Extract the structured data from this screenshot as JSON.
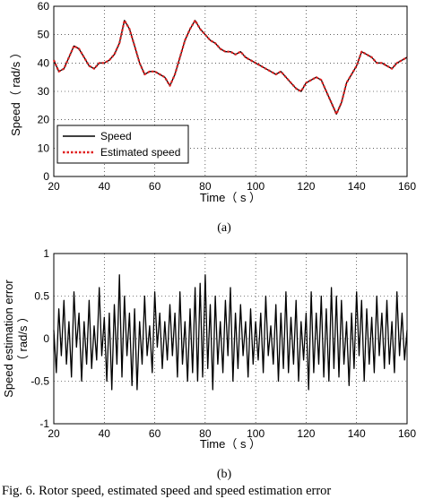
{
  "caption": "Fig. 6.  Rotor speed, estimated speed and speed estimation error",
  "chart_data": [
    {
      "type": "line",
      "sublabel": "(a)",
      "xlabel": "Time（ s ）",
      "ylabel": "Speed（ rad/s ）",
      "xlim": [
        20,
        160
      ],
      "ylim": [
        0,
        60
      ],
      "xticks": [
        20,
        40,
        60,
        80,
        100,
        120,
        140,
        160
      ],
      "yticks": [
        0,
        10,
        20,
        30,
        40,
        50,
        60
      ],
      "grid": true,
      "legend_position": "lower-left",
      "series": [
        {
          "name": "Speed",
          "color": "#000000",
          "style": "solid",
          "x": [
            20,
            22,
            24,
            26,
            28,
            30,
            32,
            34,
            36,
            38,
            40,
            42,
            44,
            46,
            48,
            50,
            52,
            54,
            56,
            58,
            60,
            62,
            64,
            66,
            68,
            70,
            72,
            74,
            76,
            78,
            80,
            82,
            84,
            86,
            88,
            90,
            92,
            94,
            96,
            98,
            100,
            102,
            104,
            106,
            108,
            110,
            112,
            114,
            116,
            118,
            120,
            122,
            124,
            126,
            128,
            130,
            132,
            134,
            136,
            138,
            140,
            142,
            144,
            146,
            148,
            150,
            152,
            154,
            156,
            158,
            160
          ],
          "values": [
            41,
            37,
            38,
            42,
            46,
            45,
            42,
            39,
            38,
            40,
            40,
            41,
            43,
            47,
            55,
            52,
            46,
            40,
            36,
            37,
            37,
            36,
            35,
            32,
            36,
            42,
            48,
            52,
            55,
            52,
            50,
            48,
            47,
            45,
            44,
            44,
            43,
            44,
            42,
            41,
            40,
            39,
            38,
            37,
            36,
            37,
            35,
            33,
            31,
            30,
            33,
            34,
            35,
            34,
            30,
            26,
            22,
            26,
            33,
            36,
            39,
            44,
            43,
            42,
            40,
            40,
            39,
            38,
            40,
            41,
            42
          ]
        },
        {
          "name": "Estimated speed",
          "color": "#e02020",
          "style": "dotted",
          "x": [
            20,
            22,
            24,
            26,
            28,
            30,
            32,
            34,
            36,
            38,
            40,
            42,
            44,
            46,
            48,
            50,
            52,
            54,
            56,
            58,
            60,
            62,
            64,
            66,
            68,
            70,
            72,
            74,
            76,
            78,
            80,
            82,
            84,
            86,
            88,
            90,
            92,
            94,
            96,
            98,
            100,
            102,
            104,
            106,
            108,
            110,
            112,
            114,
            116,
            118,
            120,
            122,
            124,
            126,
            128,
            130,
            132,
            134,
            136,
            138,
            140,
            142,
            144,
            146,
            148,
            150,
            152,
            154,
            156,
            158,
            160
          ],
          "values": [
            41,
            37,
            38,
            42,
            46,
            45,
            42,
            39,
            38,
            40,
            40,
            41,
            43,
            47,
            55,
            52,
            46,
            40,
            36,
            37,
            37,
            36,
            35,
            32,
            36,
            42,
            48,
            52,
            55,
            52,
            50,
            48,
            47,
            45,
            44,
            44,
            43,
            44,
            42,
            41,
            40,
            39,
            38,
            37,
            36,
            37,
            35,
            33,
            31,
            30,
            33,
            34,
            35,
            34,
            30,
            26,
            22,
            26,
            33,
            36,
            39,
            44,
            43,
            42,
            40,
            40,
            39,
            38,
            40,
            41,
            42
          ]
        }
      ]
    },
    {
      "type": "line",
      "sublabel": "(b)",
      "xlabel": "Time（ s ）",
      "ylabel": "Speed estimation error",
      "ylabel2": "（ rad/s ）",
      "xlim": [
        20,
        160
      ],
      "ylim": [
        -1,
        1
      ],
      "xticks": [
        20,
        40,
        60,
        80,
        100,
        120,
        140,
        160
      ],
      "yticks": [
        -1,
        -0.5,
        0,
        0.5,
        1
      ],
      "grid": true,
      "series": [
        {
          "color": "#000000",
          "style": "solid",
          "x": [
            20,
            21,
            22,
            23,
            24,
            25,
            26,
            27,
            28,
            29,
            30,
            31,
            32,
            33,
            34,
            35,
            36,
            37,
            38,
            39,
            40,
            41,
            42,
            43,
            44,
            45,
            46,
            47,
            48,
            49,
            50,
            51,
            52,
            53,
            54,
            55,
            56,
            57,
            58,
            59,
            60,
            61,
            62,
            63,
            64,
            65,
            66,
            67,
            68,
            69,
            70,
            71,
            72,
            73,
            74,
            75,
            76,
            77,
            78,
            79,
            80,
            81,
            82,
            83,
            84,
            85,
            86,
            87,
            88,
            89,
            90,
            91,
            92,
            93,
            94,
            95,
            96,
            97,
            98,
            99,
            100,
            101,
            102,
            103,
            104,
            105,
            106,
            107,
            108,
            109,
            110,
            111,
            112,
            113,
            114,
            115,
            116,
            117,
            118,
            119,
            120,
            121,
            122,
            123,
            124,
            125,
            126,
            127,
            128,
            129,
            130,
            131,
            132,
            133,
            134,
            135,
            136,
            137,
            138,
            139,
            140,
            141,
            142,
            143,
            144,
            145,
            146,
            147,
            148,
            149,
            150,
            151,
            152,
            153,
            154,
            155,
            156,
            157,
            158,
            159,
            160
          ],
          "values": [
            0.1,
            -0.4,
            0.35,
            -0.2,
            0.45,
            -0.3,
            0.2,
            -0.45,
            0.55,
            -0.1,
            0.3,
            -0.5,
            0.2,
            -0.3,
            0.45,
            -0.35,
            0.15,
            -0.25,
            0.6,
            -0.2,
            0.25,
            -0.5,
            0.3,
            -0.6,
            0.4,
            -0.3,
            0.75,
            -0.45,
            0.5,
            -0.2,
            0.3,
            -0.55,
            0.35,
            -0.6,
            0.2,
            -0.3,
            0.5,
            -0.2,
            0.15,
            -0.4,
            0.55,
            -0.1,
            0.3,
            -0.35,
            0.2,
            -0.25,
            0.4,
            -0.2,
            0.3,
            -0.45,
            0.55,
            -0.3,
            0.2,
            -0.5,
            0.35,
            -0.4,
            0.6,
            -0.5,
            0.65,
            -0.45,
            0.75,
            -0.35,
            0.4,
            -0.6,
            0.5,
            -0.3,
            0.2,
            -0.4,
            0.45,
            -0.2,
            0.6,
            -0.5,
            0.3,
            -0.35,
            0.4,
            -0.2,
            0.2,
            -0.45,
            0.35,
            -0.3,
            0.2,
            -0.25,
            0.3,
            -0.4,
            0.5,
            -0.2,
            0.15,
            -0.3,
            0.4,
            -0.5,
            0.3,
            -0.35,
            0.55,
            -0.4,
            0.25,
            -0.3,
            0.45,
            -0.5,
            0.2,
            -0.25,
            0.3,
            -0.6,
            0.55,
            -0.4,
            0.3,
            -0.3,
            0.5,
            -0.45,
            0.35,
            -0.5,
            0.6,
            -0.35,
            0.5,
            -0.45,
            0.45,
            -0.3,
            0.2,
            -0.55,
            0.3,
            -0.35,
            0.55,
            -0.2,
            0.45,
            -0.5,
            0.35,
            -0.3,
            0.25,
            -0.4,
            0.5,
            -0.2,
            0.3,
            -0.35,
            0.45,
            -0.3,
            0.2,
            -0.4,
            0.55,
            -0.2,
            0.3,
            -0.25,
            0.1
          ]
        }
      ]
    }
  ]
}
